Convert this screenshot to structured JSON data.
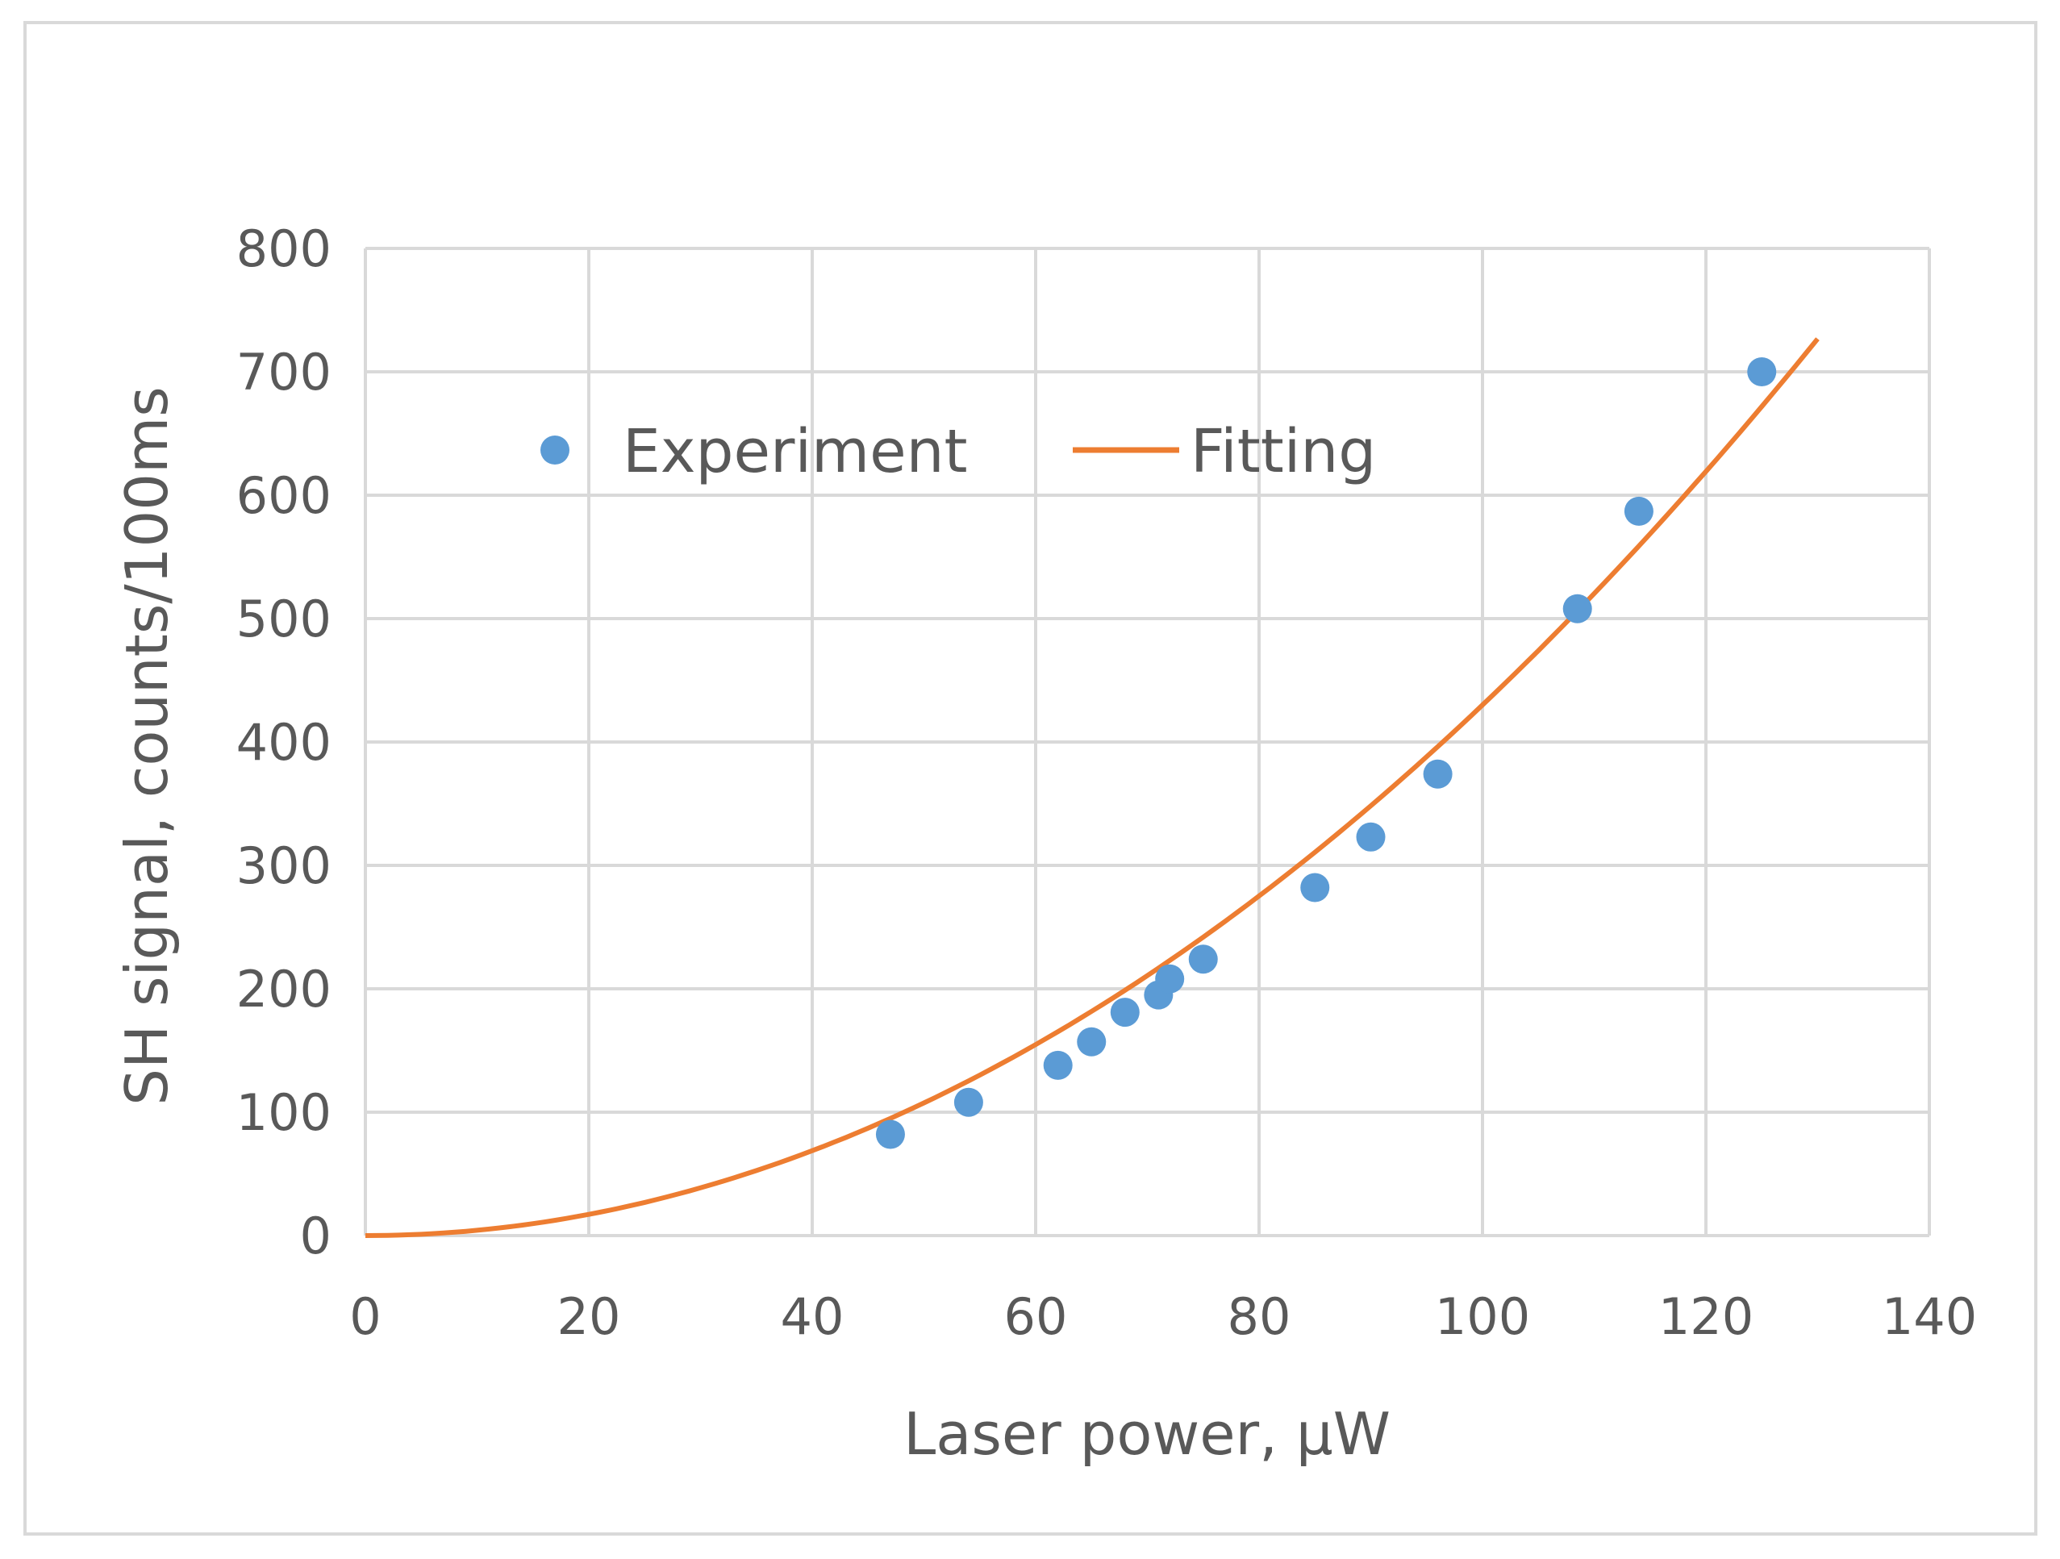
{
  "chart_data": {
    "type": "scatter",
    "title": "",
    "xlabel": "Laser power, µW",
    "ylabel": "SH signal, counts/100ms",
    "xlim": [
      0,
      140
    ],
    "ylim": [
      0,
      800
    ],
    "x_ticks": [
      "0",
      "20",
      "40",
      "60",
      "80",
      "100",
      "120",
      "140"
    ],
    "y_ticks": [
      "0",
      "100",
      "200",
      "300",
      "400",
      "500",
      "600",
      "700",
      "800"
    ],
    "grid": true,
    "legend_position": "top-left",
    "series": [
      {
        "name": "Experiment",
        "kind": "scatter",
        "color": "#5b9bd5",
        "points": [
          {
            "x": 47,
            "y": 82
          },
          {
            "x": 54,
            "y": 108
          },
          {
            "x": 62,
            "y": 138
          },
          {
            "x": 65,
            "y": 157
          },
          {
            "x": 68,
            "y": 181
          },
          {
            "x": 71,
            "y": 195
          },
          {
            "x": 72,
            "y": 208
          },
          {
            "x": 75,
            "y": 224
          },
          {
            "x": 85,
            "y": 282
          },
          {
            "x": 90,
            "y": 323
          },
          {
            "x": 96,
            "y": 374
          },
          {
            "x": 108.5,
            "y": 508
          },
          {
            "x": 114,
            "y": 587
          },
          {
            "x": 125,
            "y": 700
          }
        ]
      },
      {
        "name": "Fitting",
        "kind": "line",
        "color": "#ed7d31",
        "model": "y = a * x^2",
        "coefficient_a": 0.043,
        "x_range": [
          0,
          130
        ]
      }
    ]
  }
}
